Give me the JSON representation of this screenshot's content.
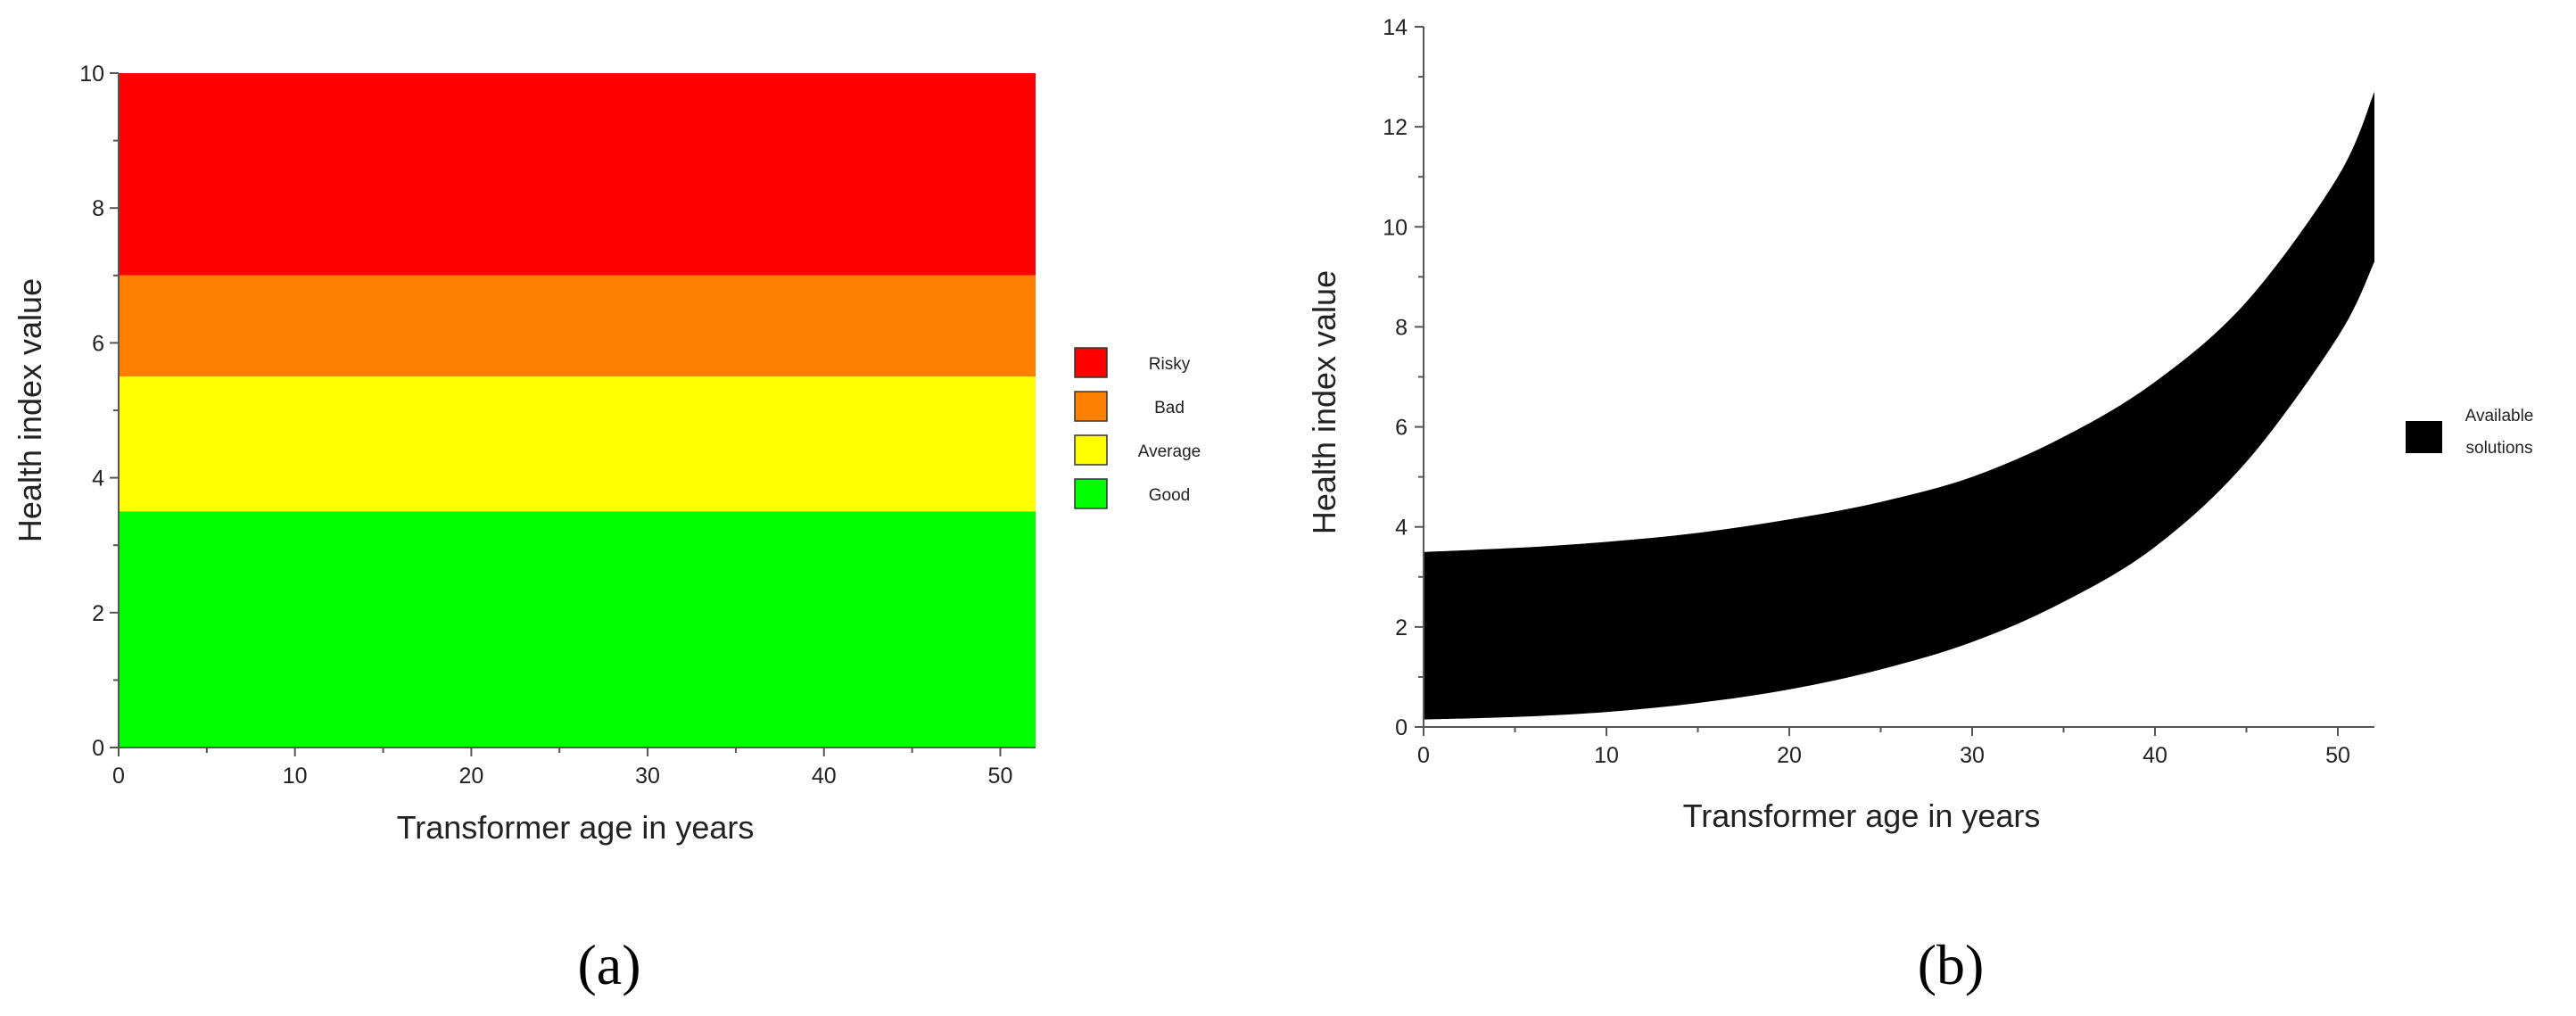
{
  "chart_data": [
    {
      "type": "area",
      "panel_label": "(a)",
      "xlabel": "Transformer age in years",
      "ylabel": "Health index value",
      "xlim": [
        0,
        52
      ],
      "ylim": [
        0,
        10
      ],
      "xticks": [
        "0",
        "10",
        "20",
        "30",
        "40",
        "50"
      ],
      "yticks": [
        "0",
        "2",
        "4",
        "6",
        "8",
        "10"
      ],
      "grid": false,
      "legend_position": "right",
      "bands": [
        {
          "name": "Risky",
          "y0": 7.0,
          "y1": 10.0,
          "color": "#ff0000"
        },
        {
          "name": "Bad",
          "y0": 5.5,
          "y1": 7.0,
          "color": "#ff8000"
        },
        {
          "name": "Average",
          "y0": 3.5,
          "y1": 5.5,
          "color": "#ffff00"
        },
        {
          "name": "Good",
          "y0": 0.0,
          "y1": 3.5,
          "color": "#00ff00"
        }
      ]
    },
    {
      "type": "area",
      "panel_label": "(b)",
      "xlabel": "Transformer age in years",
      "ylabel": "Health index value",
      "xlim": [
        0,
        52
      ],
      "ylim": [
        0,
        14
      ],
      "xticks": [
        "0",
        "10",
        "20",
        "30",
        "40",
        "50"
      ],
      "yticks": [
        "0",
        "2",
        "4",
        "6",
        "8",
        "10",
        "12",
        "14"
      ],
      "grid": false,
      "legend_position": "right",
      "series": [
        {
          "name": "Available solutions",
          "color": "#000000",
          "x": [
            0,
            5,
            10,
            15,
            20,
            25,
            30,
            35,
            40,
            45,
            50,
            52
          ],
          "upper": [
            3.5,
            3.58,
            3.7,
            3.88,
            4.15,
            4.5,
            5.0,
            5.8,
            6.9,
            8.5,
            11.0,
            12.7
          ],
          "lower": [
            0.15,
            0.2,
            0.3,
            0.48,
            0.75,
            1.15,
            1.7,
            2.5,
            3.6,
            5.3,
            7.8,
            9.3
          ]
        }
      ]
    }
  ]
}
